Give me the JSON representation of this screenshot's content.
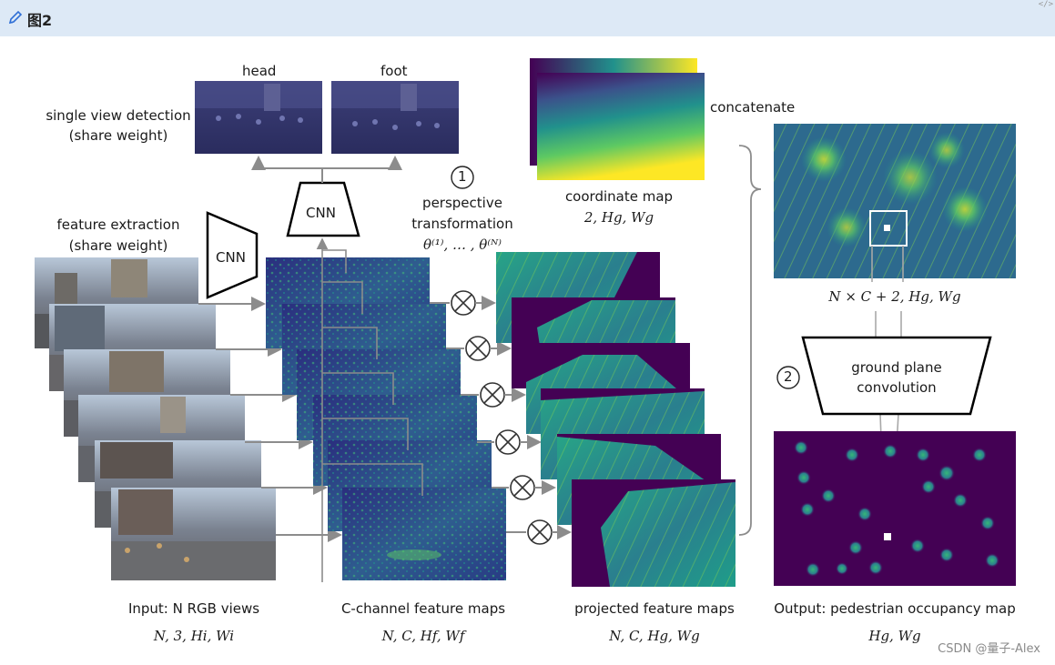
{
  "toolbar": {
    "title": "图2",
    "code_icon": "</>"
  },
  "labels": {
    "head": "head",
    "foot": "foot",
    "single_view_line1": "single view detection",
    "single_view_line2": "(share weight)",
    "feature_extraction_line1": "feature extraction",
    "feature_extraction_line2": "(share weight)",
    "cnn_top": "CNN",
    "cnn_left": "CNN",
    "step1": "1",
    "step2": "2",
    "perspective_line1": "perspective",
    "perspective_line2": "transformation",
    "perspective_theta": "θ⁽¹⁾, … , θ⁽ᴺ⁾",
    "coordinate_map": "coordinate map",
    "coordinate_dims": "2, Hg, Wg",
    "concatenate": "concatenate",
    "concat_dims": "N × C + 2, Hg, Wg",
    "ground_line1": "ground plane",
    "ground_line2": "convolution",
    "input_label": "Input: N RGB views",
    "input_dims": "N, 3, Hi, Wi",
    "feature_maps_label": "C-channel feature maps",
    "feature_dims": "N, C, Hf, Wf",
    "projected_label": "projected feature maps",
    "projected_dims": "N, C, Hg, Wg",
    "output_label": "Output: pedestrian occupancy map",
    "output_dims": "Hg, Wg"
  },
  "watermark": "CSDN @量子-Alex",
  "colors": {
    "topbar": "#dde9f6",
    "viridis_dark": "#440154",
    "viridis_blue": "#31688e",
    "viridis_teal": "#21918c",
    "viridis_green": "#5ec962",
    "viridis_yellow": "#fde725",
    "arrow": "#8c8c8c"
  },
  "icons": {
    "edit": "pencil-icon",
    "multiply": "otimes-icon"
  }
}
